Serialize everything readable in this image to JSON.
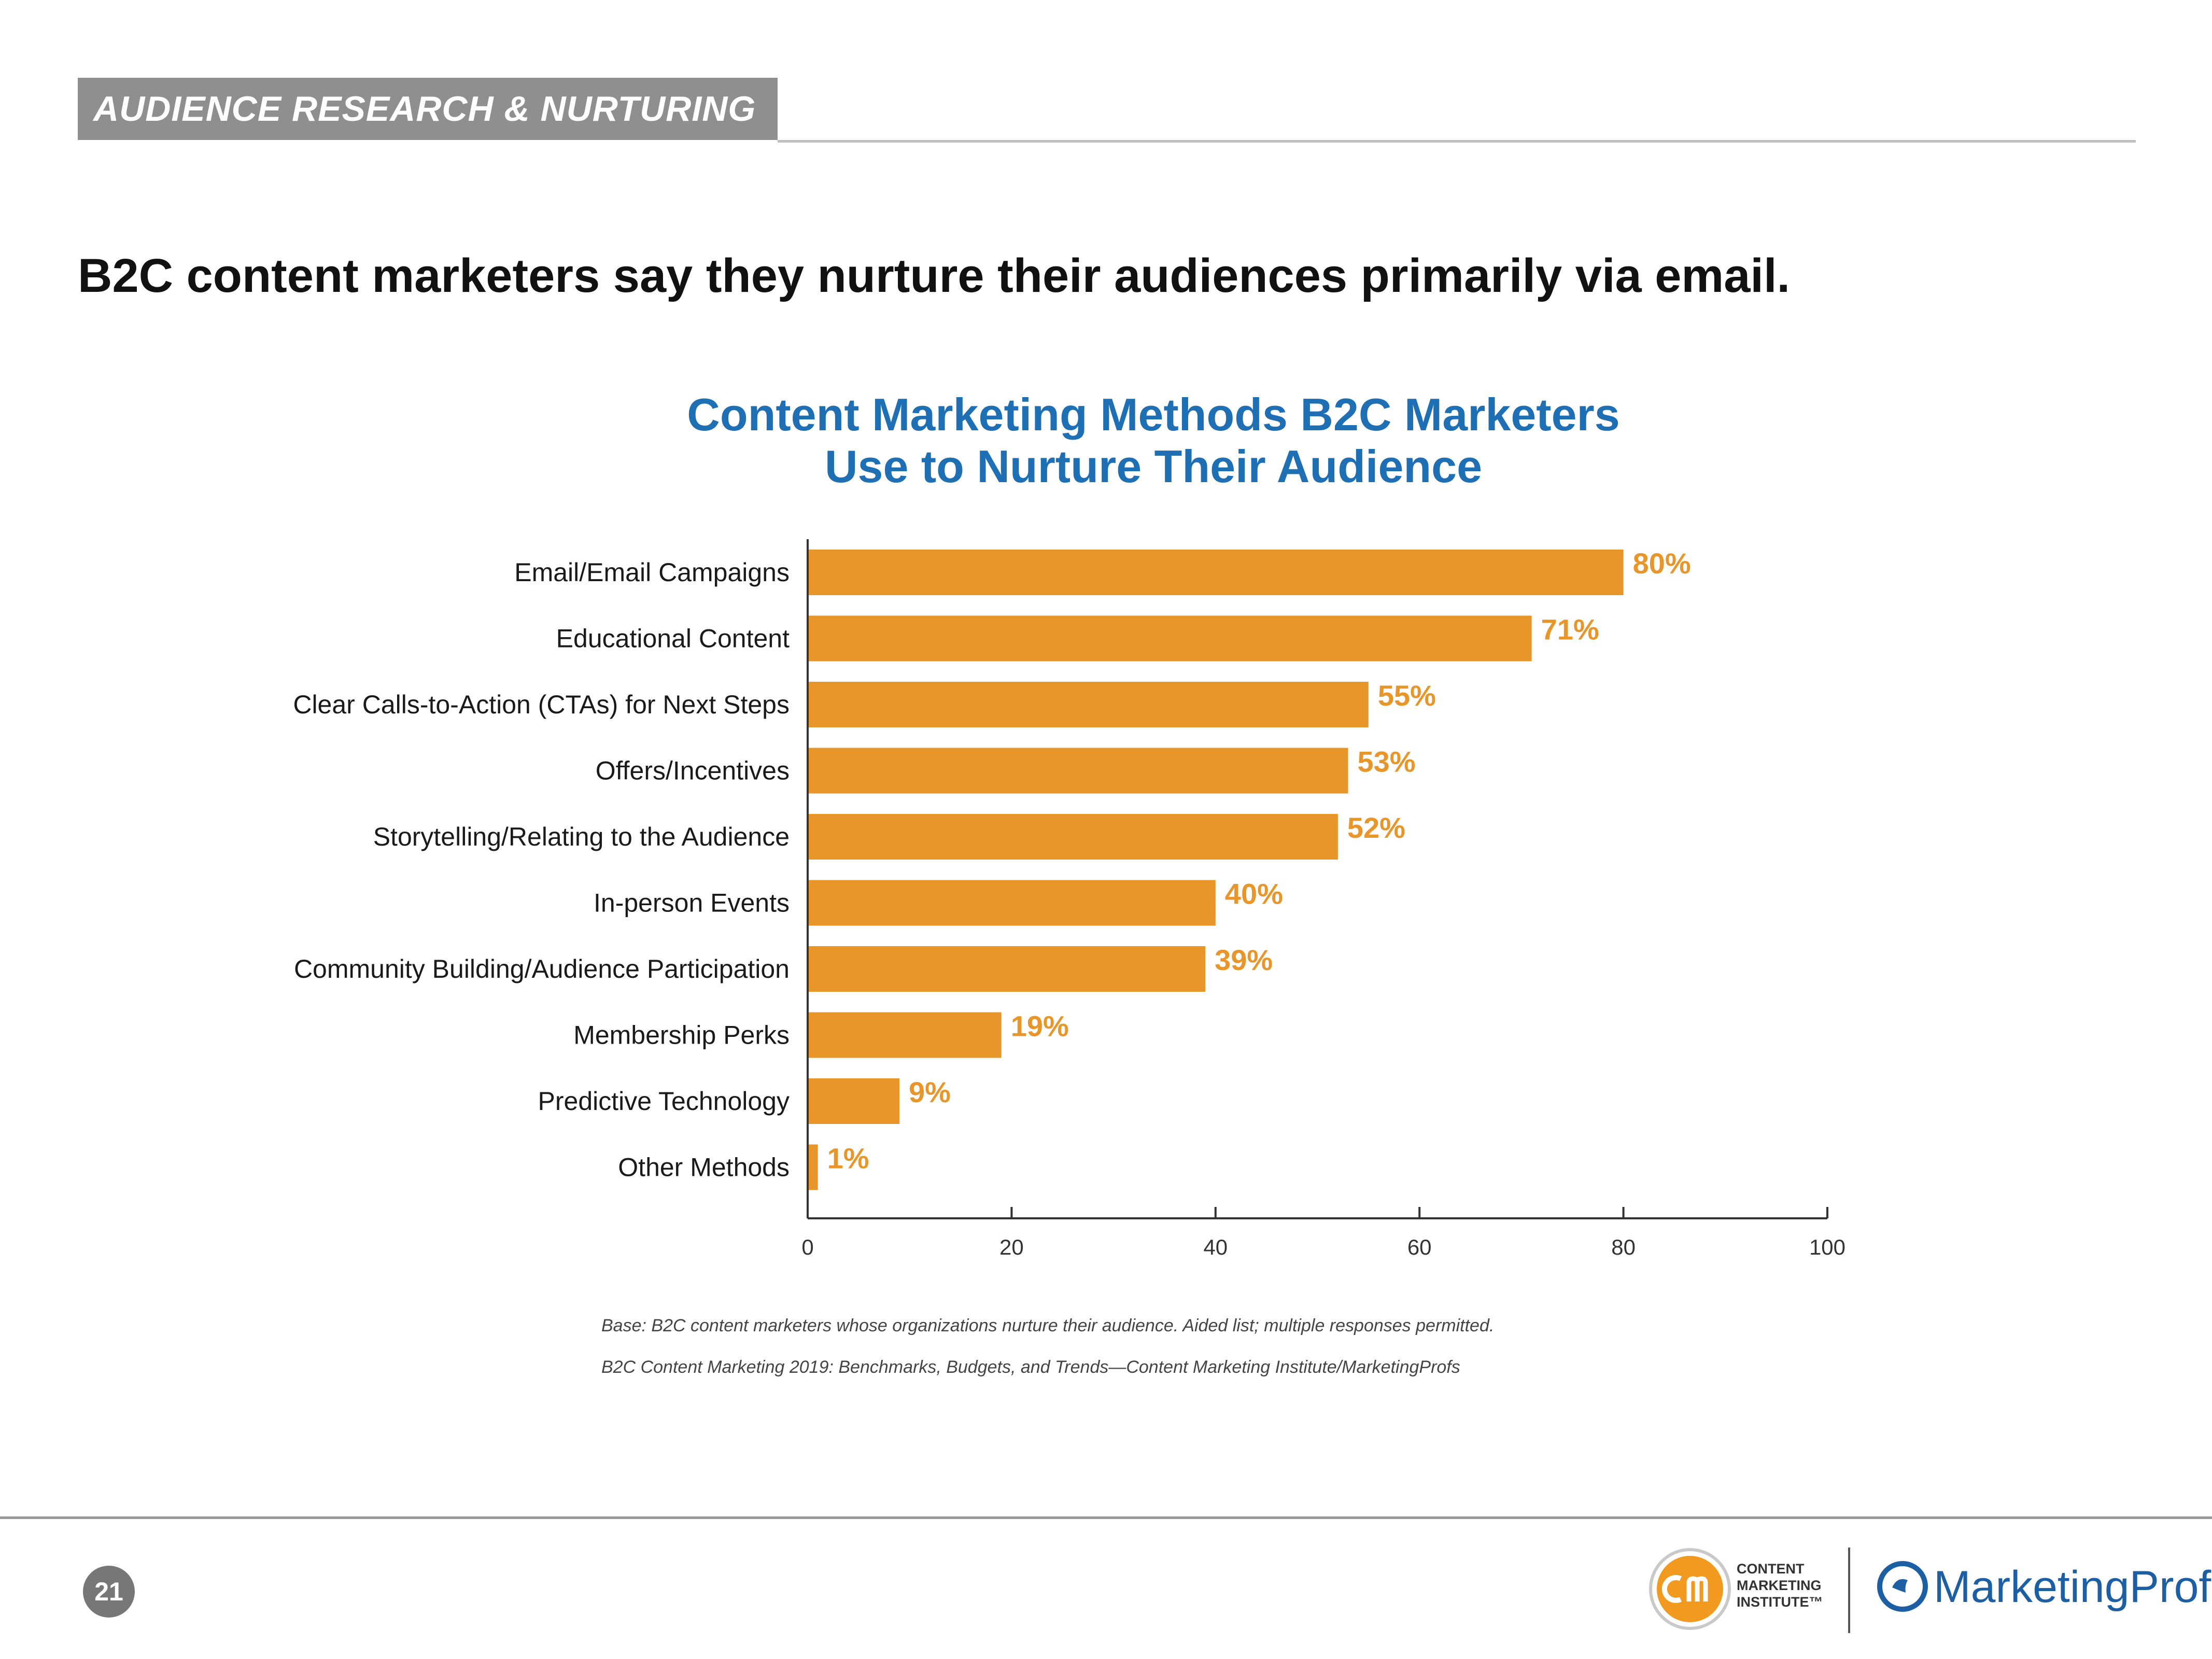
{
  "header": {
    "section_title": "AUDIENCE RESEARCH & NURTURING",
    "headline": "B2C content marketers say they nurture their audiences primarily via email."
  },
  "chart_data": {
    "type": "bar",
    "orientation": "horizontal",
    "title": "Content Marketing Methods B2C Marketers Use to Nurture Their Audience",
    "title_lines": [
      "Content Marketing Methods B2C Marketers",
      "Use to Nurture Their Audience"
    ],
    "categories": [
      "Email/Email Campaigns",
      "Educational Content",
      "Clear Calls-to-Action (CTAs) for Next Steps",
      "Offers/Incentives",
      "Storytelling/Relating to the Audience",
      "In-person Events",
      "Community Building/Audience Participation",
      "Membership Perks",
      "Predictive Technology",
      "Other Methods"
    ],
    "values": [
      80,
      71,
      55,
      53,
      52,
      40,
      39,
      19,
      9,
      1
    ],
    "value_labels": [
      "80%",
      "71%",
      "55%",
      "53%",
      "52%",
      "40%",
      "39%",
      "19%",
      "9%",
      "1%"
    ],
    "xlim": [
      0,
      100
    ],
    "xticks": [
      0,
      20,
      40,
      60,
      80,
      100
    ],
    "xlabel": "",
    "ylabel": "",
    "grid": false,
    "bar_color": "#e8952a",
    "title_color": "#1f6fb4"
  },
  "notes": {
    "base": "Base: B2C content marketers whose organizations nurture their audience. Aided list; multiple responses permitted.",
    "source": "B2C Content Marketing 2019: Benchmarks, Budgets, and Trends—Content Marketing Institute/MarketingProfs"
  },
  "footer": {
    "page_number": "21",
    "cmi_lines": [
      "CONTENT",
      "MARKETING",
      "INSTITUTE™"
    ],
    "mp_name": "MarketingProfs",
    "cmi_icon": "cm-logo-icon",
    "mp_icon": "marketingprofs-logo-icon"
  }
}
